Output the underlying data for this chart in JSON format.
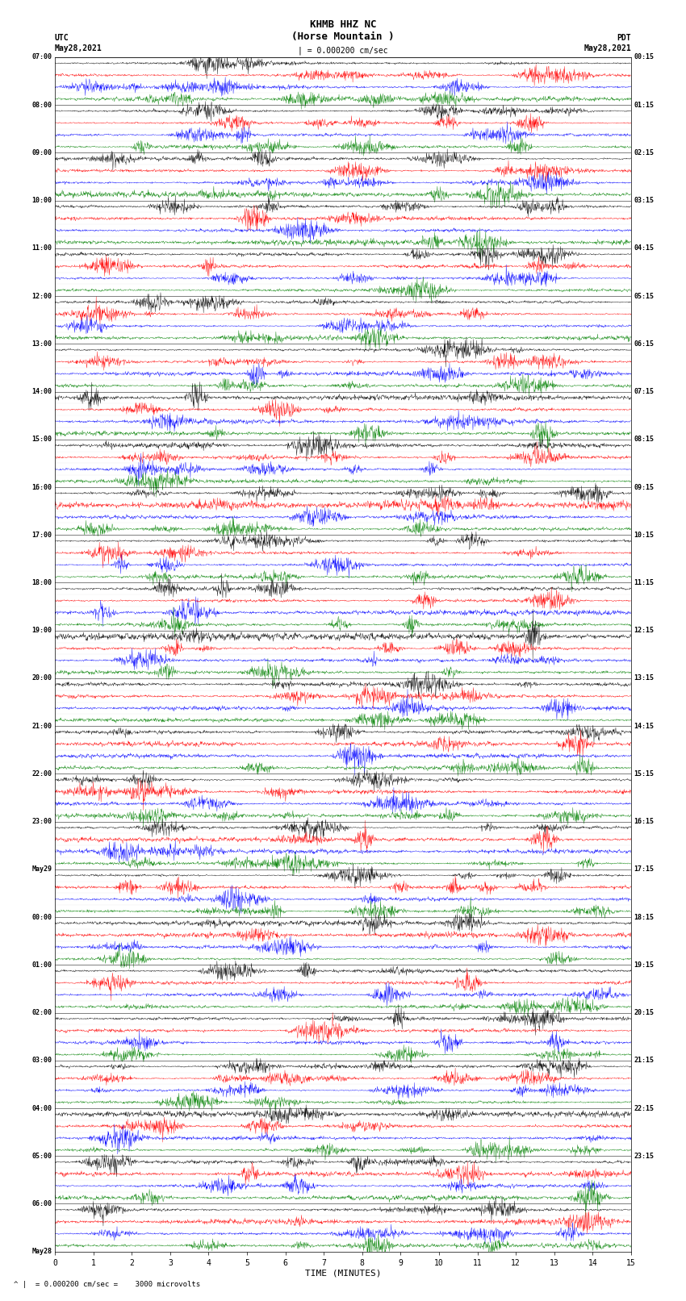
{
  "title_line1": "KHMB HHZ NC",
  "title_line2": "(Horse Mountain )",
  "scale_label": "| = 0.000200 cm/sec",
  "left_header": "UTC",
  "left_date": "May28,2021",
  "right_header": "PDT",
  "right_date": "May28,2021",
  "bottom_xlabel": "TIME (MINUTES)",
  "bottom_note": "^ |  = 0.000200 cm/sec =    3000 microvolts",
  "left_times": [
    "07:00",
    "",
    "",
    "",
    "08:00",
    "",
    "",
    "",
    "09:00",
    "",
    "",
    "",
    "10:00",
    "",
    "",
    "",
    "11:00",
    "",
    "",
    "",
    "12:00",
    "",
    "",
    "",
    "13:00",
    "",
    "",
    "",
    "14:00",
    "",
    "",
    "",
    "15:00",
    "",
    "",
    "",
    "16:00",
    "",
    "",
    "",
    "17:00",
    "",
    "",
    "",
    "18:00",
    "",
    "",
    "",
    "19:00",
    "",
    "",
    "",
    "20:00",
    "",
    "",
    "",
    "21:00",
    "",
    "",
    "",
    "22:00",
    "",
    "",
    "",
    "23:00",
    "",
    "",
    "",
    "May29",
    "00:00",
    "",
    "",
    "",
    "01:00",
    "",
    "",
    "",
    "02:00",
    "",
    "",
    "",
    "03:00",
    "",
    "",
    "",
    "04:00",
    "",
    "",
    "",
    "05:00",
    "",
    "",
    "",
    "06:00",
    "",
    "",
    "",
    "May28"
  ],
  "right_times": [
    "00:15",
    "",
    "",
    "",
    "01:15",
    "",
    "",
    "",
    "02:15",
    "",
    "",
    "",
    "03:15",
    "",
    "",
    "",
    "04:15",
    "",
    "",
    "",
    "05:15",
    "",
    "",
    "",
    "06:15",
    "",
    "",
    "",
    "07:15",
    "",
    "",
    "",
    "08:15",
    "",
    "",
    "",
    "09:15",
    "",
    "",
    "",
    "10:15",
    "",
    "",
    "",
    "11:15",
    "",
    "",
    "",
    "12:15",
    "",
    "",
    "",
    "13:15",
    "",
    "",
    "",
    "14:15",
    "",
    "",
    "",
    "15:15",
    "",
    "",
    "",
    "16:15",
    "",
    "",
    "",
    "17:15",
    "",
    "",
    "",
    "18:15",
    "",
    "",
    "",
    "19:15",
    "",
    "",
    "",
    "20:15",
    "",
    "",
    "",
    "21:15",
    "",
    "",
    "",
    "22:15",
    "",
    "",
    "",
    "23:15",
    "",
    "",
    "",
    ""
  ],
  "hour_labels_left": [
    "07:00",
    "08:00",
    "09:00",
    "10:00",
    "11:00",
    "12:00",
    "13:00",
    "14:00",
    "15:00",
    "16:00",
    "17:00",
    "18:00",
    "19:00",
    "20:00",
    "21:00",
    "22:00",
    "23:00",
    "May29",
    "00:00",
    "01:00",
    "02:00",
    "03:00",
    "04:00",
    "05:00",
    "06:00",
    "May28"
  ],
  "hour_labels_right": [
    "00:15",
    "01:15",
    "02:15",
    "03:15",
    "04:15",
    "05:15",
    "06:15",
    "07:15",
    "08:15",
    "09:15",
    "10:15",
    "11:15",
    "12:15",
    "13:15",
    "14:15",
    "15:15",
    "16:15",
    "17:15",
    "18:15",
    "19:15",
    "20:15",
    "21:15",
    "22:15",
    "23:15",
    "",
    ""
  ],
  "n_groups": 25,
  "traces_per_group": 4,
  "colors_cycle": [
    "black",
    "red",
    "blue",
    "green"
  ],
  "bg_color": "white",
  "figwidth": 8.5,
  "figheight": 16.13,
  "dpi": 100
}
